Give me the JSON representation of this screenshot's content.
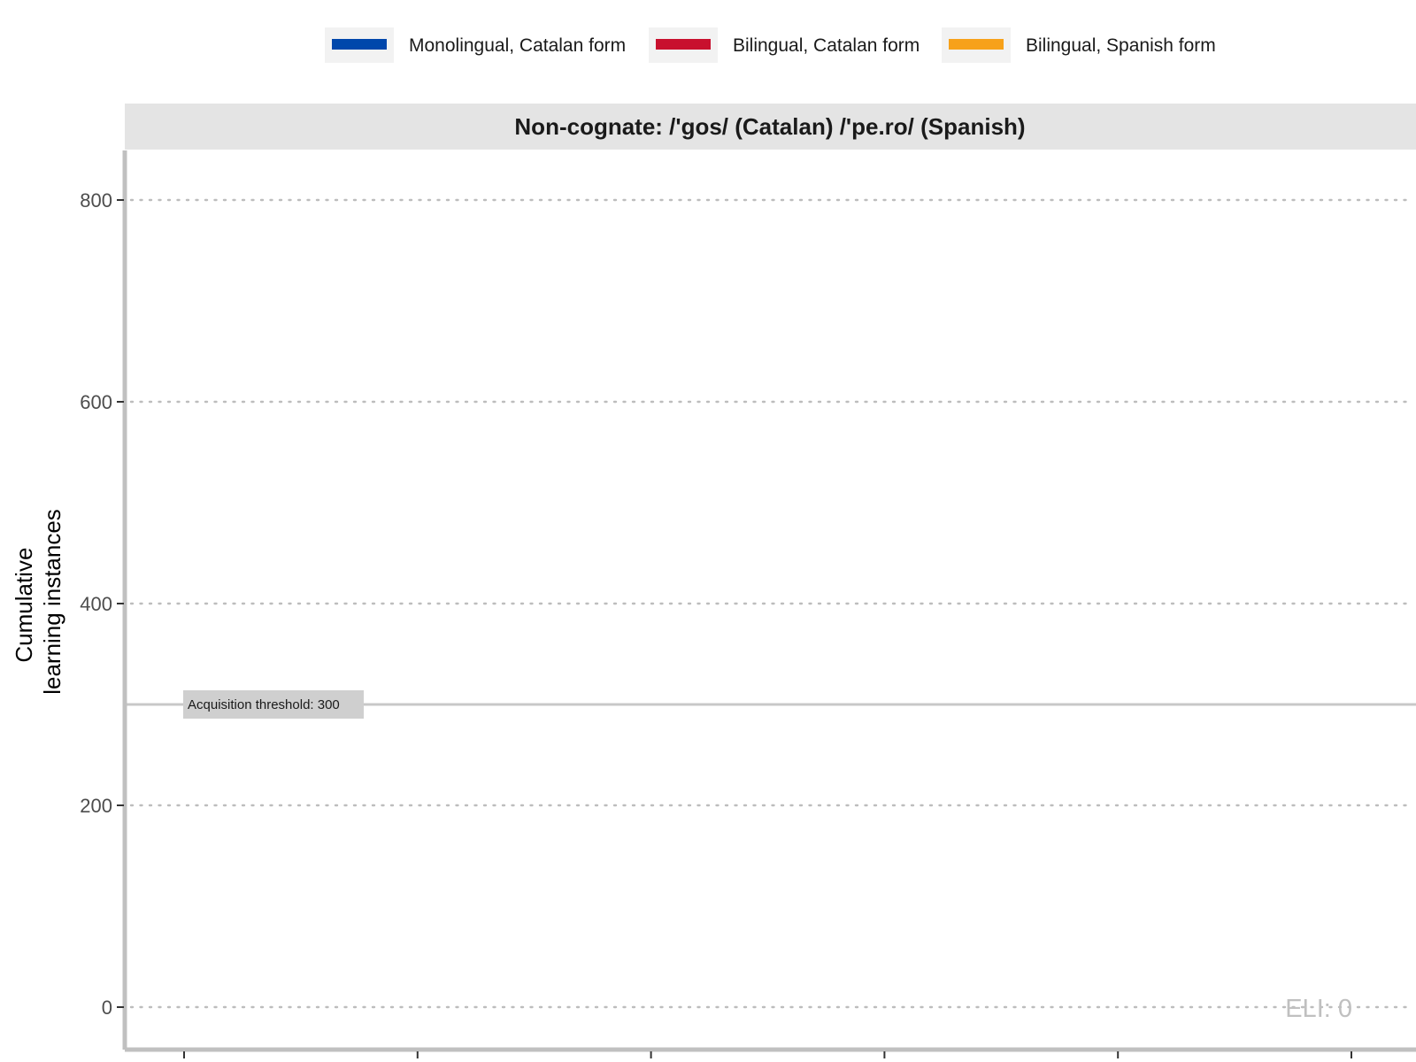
{
  "chart_data": {
    "type": "line",
    "facet_title": "Non-cognate: /'gos/ (Catalan) /'pe.ro/ (Spanish)",
    "ylabel_line1": "Cumulative",
    "ylabel_line2": "learning instances",
    "xlabel": "",
    "ylim": [
      -50,
      850
    ],
    "yticks": [
      0,
      200,
      400,
      600,
      800
    ],
    "ytick_labels": [
      "0",
      "200",
      "400",
      "600",
      "800"
    ],
    "x_tick_count": 6,
    "grid": "horizontal dotted",
    "legend_position": "top",
    "threshold": {
      "value": 300,
      "label": "Acquisition threshold: 300"
    },
    "annotation": "ELI: 0",
    "series": [
      {
        "name": "Monolingual, Catalan form",
        "color": "#0047AB",
        "values": []
      },
      {
        "name": "Bilingual, Catalan form",
        "color": "#C8102E",
        "values": []
      },
      {
        "name": "Bilingual, Spanish form",
        "color": "#F7A11A",
        "values": []
      }
    ]
  }
}
